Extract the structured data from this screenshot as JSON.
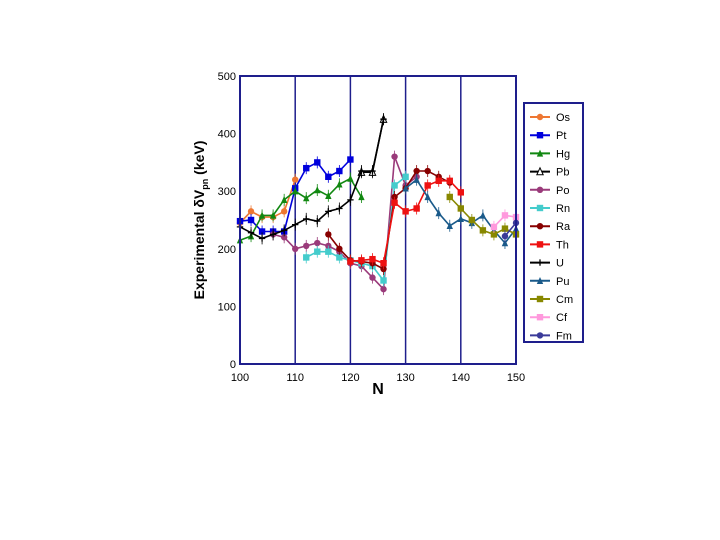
{
  "chart_data": {
    "type": "line",
    "xlabel": "N",
    "ylabel_main": "Experimental δV",
    "ylabel_sub": "pn",
    "ylabel_unit": " (keV)",
    "xlim": [
      100,
      150
    ],
    "ylim": [
      0,
      500
    ],
    "x_ticks": [
      100,
      110,
      120,
      130,
      140,
      150
    ],
    "y_ticks": [
      0,
      100,
      200,
      300,
      400,
      500
    ],
    "grid": "vertical",
    "legend_position": "right",
    "series": [
      {
        "name": "Os",
        "color": "#ee7733",
        "marker": "circle",
        "points": [
          [
            100,
            245
          ],
          [
            102,
            265
          ],
          [
            104,
            255
          ],
          [
            106,
            255
          ],
          [
            108,
            265
          ],
          [
            110,
            320
          ]
        ]
      },
      {
        "name": "Pt",
        "color": "#0000dd",
        "marker": "square",
        "points": [
          [
            100,
            248
          ],
          [
            102,
            250
          ],
          [
            104,
            230
          ],
          [
            106,
            230
          ],
          [
            108,
            230
          ],
          [
            110,
            305
          ],
          [
            112,
            340
          ],
          [
            114,
            350
          ],
          [
            116,
            325
          ],
          [
            118,
            335
          ],
          [
            120,
            355
          ]
        ]
      },
      {
        "name": "Hg",
        "color": "#118811",
        "marker": "triangle",
        "points": [
          [
            100,
            215
          ],
          [
            102,
            222
          ],
          [
            104,
            258
          ],
          [
            106,
            258
          ],
          [
            108,
            285
          ],
          [
            110,
            300
          ],
          [
            112,
            288
          ],
          [
            114,
            302
          ],
          [
            116,
            292
          ],
          [
            118,
            312
          ],
          [
            120,
            322
          ],
          [
            122,
            290
          ]
        ]
      },
      {
        "name": "Pb",
        "color": "#000000",
        "marker": "triangle-open",
        "points": [
          [
            122,
            333
          ],
          [
            124,
            333
          ],
          [
            126,
            425
          ]
        ]
      },
      {
        "name": "Po",
        "color": "#9a3a7a",
        "marker": "circle",
        "points": [
          [
            106,
            225
          ],
          [
            108,
            220
          ],
          [
            110,
            200
          ],
          [
            112,
            205
          ],
          [
            114,
            210
          ],
          [
            116,
            205
          ],
          [
            118,
            195
          ],
          [
            120,
            175
          ],
          [
            122,
            170
          ],
          [
            124,
            150
          ],
          [
            126,
            130
          ],
          [
            128,
            360
          ],
          [
            130,
            310
          ],
          [
            132,
            325
          ]
        ]
      },
      {
        "name": "Rn",
        "color": "#44cccc",
        "marker": "square",
        "points": [
          [
            112,
            185
          ],
          [
            114,
            195
          ],
          [
            116,
            195
          ],
          [
            118,
            185
          ],
          [
            120,
            180
          ],
          [
            122,
            175
          ],
          [
            124,
            170
          ],
          [
            126,
            145
          ],
          [
            128,
            310
          ],
          [
            130,
            325
          ]
        ]
      },
      {
        "name": "Ra",
        "color": "#880000",
        "marker": "circle",
        "points": [
          [
            116,
            225
          ],
          [
            118,
            200
          ],
          [
            120,
            180
          ],
          [
            122,
            178
          ],
          [
            124,
            175
          ],
          [
            126,
            165
          ],
          [
            128,
            290
          ],
          [
            130,
            305
          ],
          [
            132,
            335
          ],
          [
            134,
            335
          ],
          [
            136,
            325
          ],
          [
            138,
            315
          ]
        ]
      },
      {
        "name": "Th",
        "color": "#ee1111",
        "marker": "square",
        "points": [
          [
            120,
            178
          ],
          [
            122,
            180
          ],
          [
            124,
            182
          ],
          [
            126,
            175
          ],
          [
            128,
            280
          ],
          [
            130,
            265
          ],
          [
            132,
            270
          ],
          [
            134,
            310
          ],
          [
            136,
            318
          ],
          [
            138,
            318
          ],
          [
            140,
            298
          ]
        ]
      },
      {
        "name": "U",
        "color": "#000000",
        "marker": "cross",
        "points": [
          [
            100,
            238
          ],
          [
            102,
            228
          ],
          [
            104,
            218
          ],
          [
            106,
            225
          ],
          [
            108,
            232
          ],
          [
            110,
            242
          ],
          [
            112,
            252
          ],
          [
            114,
            248
          ],
          [
            116,
            265
          ],
          [
            118,
            270
          ],
          [
            120,
            285
          ],
          [
            122,
            335
          ],
          [
            124,
            335
          ],
          [
            126,
            425
          ]
        ]
      },
      {
        "name": "Pu",
        "color": "#1a5a8a",
        "marker": "triangle",
        "points": [
          [
            130,
            305
          ],
          [
            132,
            320
          ],
          [
            134,
            290
          ],
          [
            136,
            262
          ],
          [
            138,
            240
          ],
          [
            140,
            252
          ],
          [
            142,
            245
          ],
          [
            144,
            258
          ],
          [
            146,
            232
          ],
          [
            148,
            210
          ],
          [
            150,
            235
          ]
        ]
      },
      {
        "name": "Cm",
        "color": "#888800",
        "marker": "square",
        "points": [
          [
            138,
            290
          ],
          [
            140,
            270
          ],
          [
            142,
            250
          ],
          [
            144,
            232
          ],
          [
            146,
            225
          ],
          [
            148,
            235
          ],
          [
            150,
            225
          ]
        ]
      },
      {
        "name": "Cf",
        "color": "#ff99dd",
        "marker": "square",
        "points": [
          [
            146,
            238
          ],
          [
            148,
            258
          ],
          [
            150,
            255
          ]
        ]
      },
      {
        "name": "Fm",
        "color": "#3a3a99",
        "marker": "circle",
        "points": [
          [
            148,
            222
          ],
          [
            150,
            245
          ]
        ]
      }
    ]
  }
}
